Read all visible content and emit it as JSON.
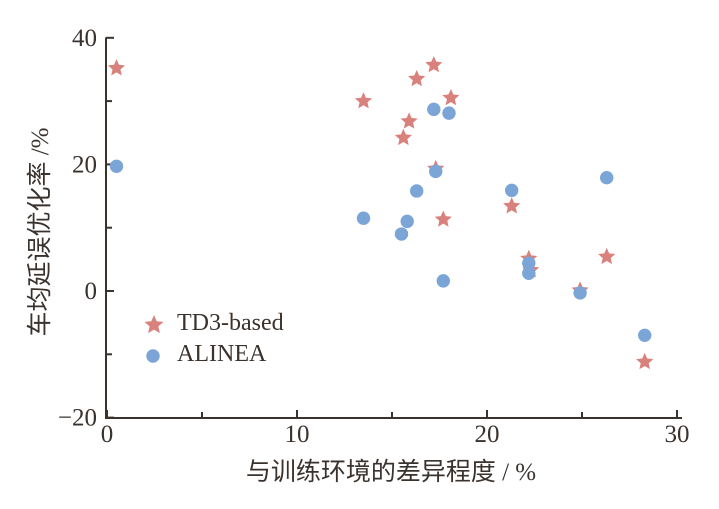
{
  "chart_data": {
    "type": "scatter",
    "title": "",
    "xlabel": "与训练环境的差异程度 / %",
    "ylabel": "车均延误优化率 /%",
    "xlim": [
      0,
      30
    ],
    "ylim": [
      -20,
      40
    ],
    "grid": false,
    "legend_position": "inside-lower-left",
    "axis_color": "#3a322d",
    "background_color": "#ffffff",
    "x_ticks": {
      "major": [
        {
          "value": 0,
          "label": "0"
        },
        {
          "value": 10,
          "label": "10"
        },
        {
          "value": 20,
          "label": "20"
        },
        {
          "value": 30,
          "label": "30"
        }
      ],
      "minor": [
        5,
        15,
        25
      ]
    },
    "y_ticks": {
      "major": [
        {
          "value": -20,
          "label": "−20"
        },
        {
          "value": 0,
          "label": "0"
        },
        {
          "value": 20,
          "label": "20"
        },
        {
          "value": 40,
          "label": "40"
        }
      ],
      "minor": [
        -10,
        10,
        30
      ]
    },
    "series": [
      {
        "name": "TD3-based",
        "marker": "star",
        "color": "#d9827d",
        "points": [
          [
            0.5,
            35.2
          ],
          [
            13.5,
            30.0
          ],
          [
            15.6,
            24.2
          ],
          [
            15.9,
            26.8
          ],
          [
            16.3,
            33.5
          ],
          [
            17.2,
            35.7
          ],
          [
            17.3,
            19.3
          ],
          [
            17.7,
            11.3
          ],
          [
            18.1,
            30.5
          ],
          [
            21.3,
            13.4
          ],
          [
            22.2,
            5.1
          ],
          [
            22.3,
            3.3
          ],
          [
            24.9,
            0.1
          ],
          [
            26.3,
            5.4
          ],
          [
            28.3,
            -11.2
          ]
        ]
      },
      {
        "name": "ALINEA",
        "marker": "circle",
        "color": "#7ba5d7",
        "points": [
          [
            0.5,
            19.7
          ],
          [
            13.5,
            11.5
          ],
          [
            15.5,
            9.0
          ],
          [
            15.8,
            11.0
          ],
          [
            16.3,
            15.8
          ],
          [
            17.2,
            28.7
          ],
          [
            17.3,
            18.9
          ],
          [
            17.7,
            1.6
          ],
          [
            18.0,
            28.1
          ],
          [
            21.3,
            15.9
          ],
          [
            22.2,
            4.4
          ],
          [
            22.2,
            2.8
          ],
          [
            24.9,
            -0.3
          ],
          [
            26.3,
            17.9
          ],
          [
            28.3,
            -7.0
          ]
        ]
      }
    ]
  }
}
